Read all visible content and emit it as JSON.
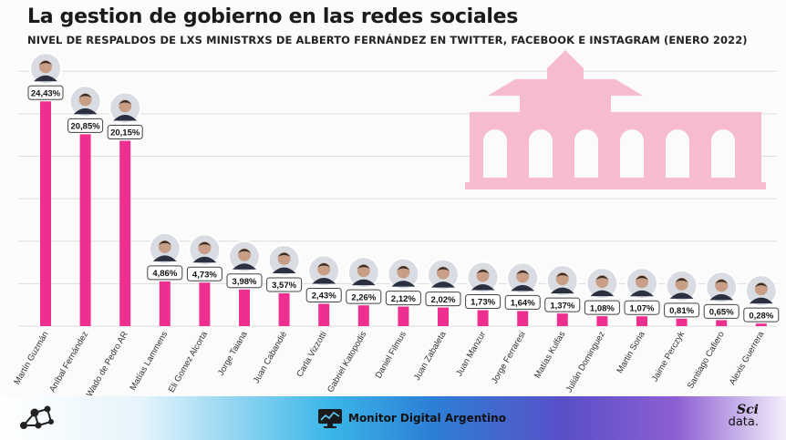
{
  "title": "La gestion de gobierno en las redes sociales",
  "subtitle": "NIVEL DE RESPALDOS DE LXS MINISTRXS DE ALBERTO FERNÁNDEZ EN TWITTER, FACEBOOK E INSTAGRAM (ENERO 2022)",
  "colors": {
    "bar": "#ef2f8f",
    "building": "#f6bccd",
    "grid": "#dddddd"
  },
  "footer": {
    "brand": "Monitor Digital Argentino",
    "sci_line1": "Sci",
    "sci_line2": "data."
  },
  "chart_data": {
    "type": "bar",
    "categories": [
      "Martín Guzmán",
      "Aníbal Fernández",
      "Wado de Pedro AR",
      "Matías Lammens",
      "Eli Gomez Alcorta",
      "Jorge Taiana",
      "Juan Cabandié",
      "Carla Vizzotti",
      "Gabriel Katopodis",
      "Daniel Filmus",
      "Juan Zabaleta",
      "Juan Manzur",
      "Jorge Ferraresi",
      "Matías Kulfas",
      "Julián Dominguez",
      "Martin Soria",
      "Jaime Perczyk",
      "Santiago Cafiero",
      "Alexis Guerrera"
    ],
    "values": [
      24.43,
      20.85,
      20.15,
      4.86,
      4.73,
      3.98,
      3.57,
      2.43,
      2.26,
      2.12,
      2.02,
      1.73,
      1.64,
      1.37,
      1.08,
      1.07,
      0.81,
      0.65,
      0.28
    ],
    "labels": [
      "24,43%",
      "20,85%",
      "20,15%",
      "4,86%",
      "4,73%",
      "3,98%",
      "3,57%",
      "2,43%",
      "2,26%",
      "2,12%",
      "2,02%",
      "1,73%",
      "1,64%",
      "1,37%",
      "1,08%",
      "1,07%",
      "0,81%",
      "0,65%",
      "0,28%"
    ],
    "ylim": [
      0,
      30
    ],
    "grid": true,
    "legend": "none"
  }
}
